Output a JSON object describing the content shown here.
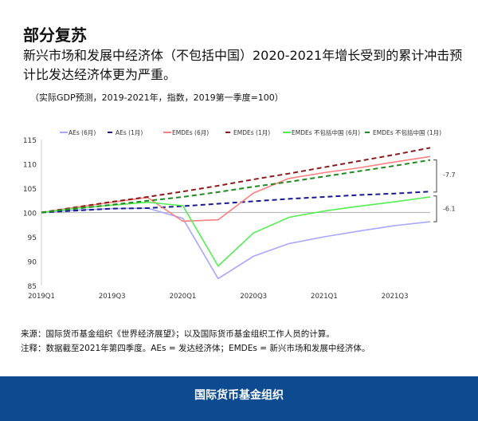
{
  "title": "部分复苏",
  "subtitle": "新兴市场和发展中经济体（不包括中国）2020-2021年增长受到的累计冲击预计比发达经济体更为严重。",
  "note": "（实际GDP预测，2019-2021年，指数，2019第一季度=100）",
  "source": "来源：国际货币基金组织《世界经济展望》；以及国际货币基金组织工作人员的计算。",
  "remark": "注释：数据截至2021年第四季度。AEs = 发达经济体；EMDEs = 新兴市场和发展中经济体。",
  "footer": "国际货币基金组织",
  "chart_data": {
    "type": "line",
    "x": [
      "2019Q1",
      "2019Q2",
      "2019Q3",
      "2019Q4",
      "2020Q1",
      "2020Q2",
      "2020Q3",
      "2020Q4",
      "2021Q1",
      "2021Q2",
      "2021Q3",
      "2021Q4"
    ],
    "xticks": [
      "2019Q1",
      "2019Q3",
      "2020Q1",
      "2020Q3",
      "2021Q1",
      "2021Q3"
    ],
    "yticks": [
      85,
      90,
      95,
      100,
      105,
      110,
      115
    ],
    "ylim": [
      85,
      115
    ],
    "legend": "top",
    "series": [
      {
        "name": "AEs (6月)",
        "color": "#a8a8ff",
        "dash": false,
        "values": [
          100,
          100.5,
          100.8,
          100.9,
          98.8,
          86.4,
          91,
          93.6,
          95,
          96.2,
          97.3,
          98.1
        ]
      },
      {
        "name": "AEs (1月)",
        "color": "#1a1a8c",
        "dash": true,
        "values": [
          100,
          100.4,
          100.8,
          100.9,
          101.3,
          101.8,
          102.3,
          102.8,
          103.2,
          103.6,
          103.9,
          104.3
        ]
      },
      {
        "name": "EMDEs (6月)",
        "color": "#ff8080",
        "dash": false,
        "values": [
          100,
          101.1,
          102.1,
          103.1,
          98.2,
          98.5,
          104,
          107,
          108.2,
          109.2,
          110.4,
          111.5
        ]
      },
      {
        "name": "EMDEs (1月)",
        "color": "#8b1a1a",
        "dash": true,
        "values": [
          100,
          101.1,
          102.2,
          103.2,
          104.3,
          105.5,
          106.8,
          108,
          109.3,
          110.6,
          111.9,
          113.3
        ]
      },
      {
        "name": "EMDEs 不包括中国 (6月)",
        "color": "#55ee55",
        "dash": false,
        "values": [
          100,
          100.9,
          101.5,
          102.1,
          101.4,
          89,
          95.8,
          99,
          100.3,
          101.3,
          102.2,
          103.2
        ]
      },
      {
        "name": "EMDEs 不包括中国 (1月)",
        "color": "#1f8a1f",
        "dash": true,
        "values": [
          100,
          100.8,
          101.6,
          102.4,
          103.2,
          104.2,
          105.3,
          106.3,
          107.4,
          108.5,
          109.6,
          110.8
        ]
      }
    ],
    "annotations": [
      "-7.7",
      "-6.1"
    ]
  }
}
